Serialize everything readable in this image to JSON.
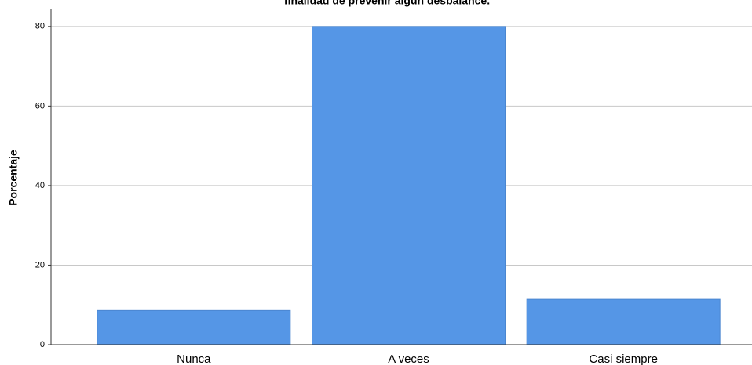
{
  "chart_data": {
    "type": "bar",
    "title": "finalidad de prevenir algún desbalance.",
    "y_label": "Porcentaje",
    "categories": [
      "Nunca",
      "A veces",
      "Casi siempre"
    ],
    "values": [
      8.6,
      80,
      11.4
    ],
    "color": "#5596e6",
    "ylim": [
      0,
      84.3
    ],
    "yticks": [
      0,
      20,
      40,
      60,
      80
    ],
    "grid": true
  }
}
